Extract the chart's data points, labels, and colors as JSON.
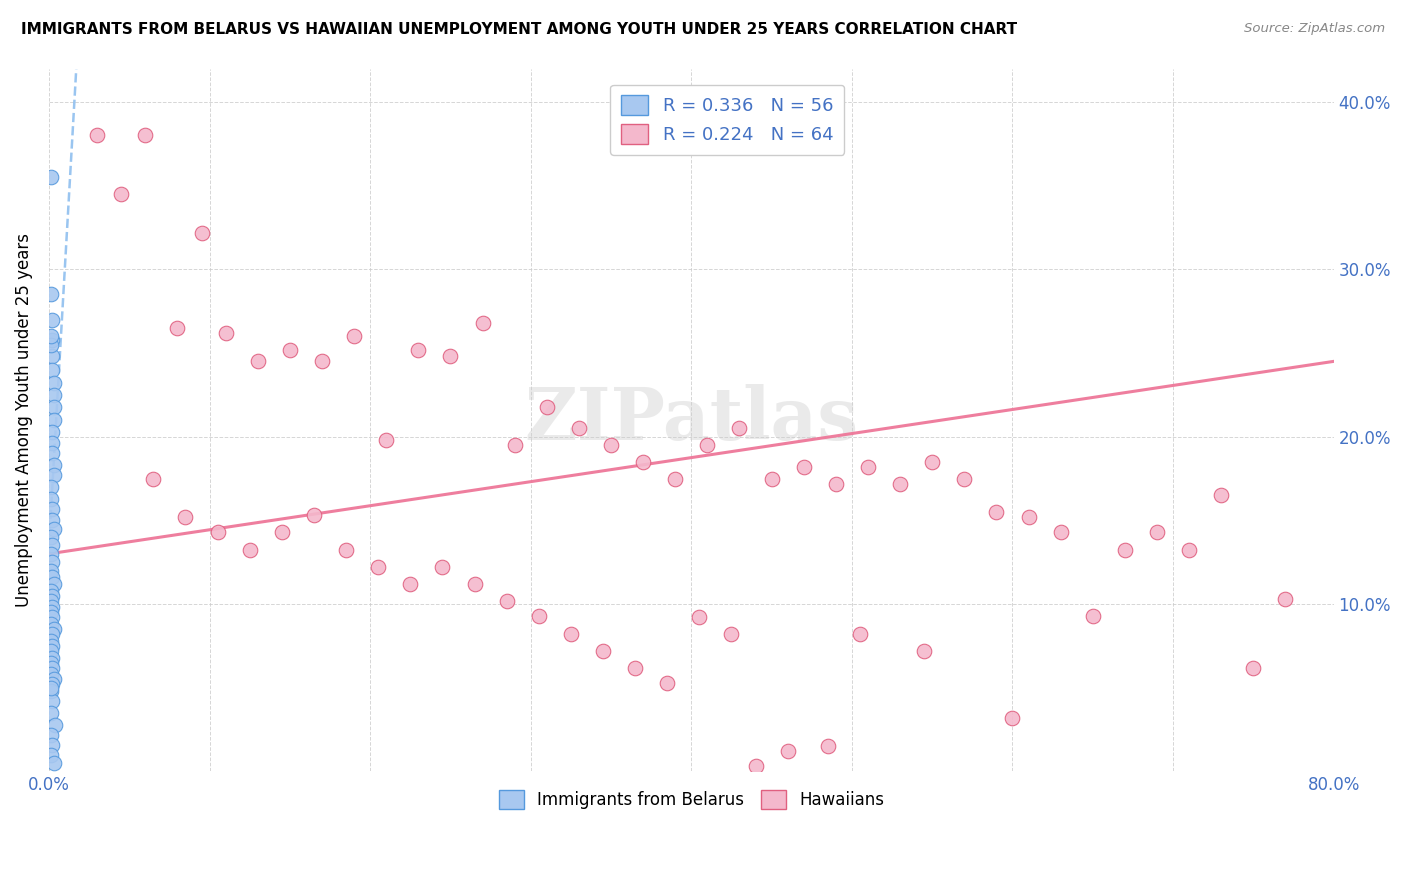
{
  "title": "IMMIGRANTS FROM BELARUS VS HAWAIIAN UNEMPLOYMENT AMONG YOUTH UNDER 25 YEARS CORRELATION CHART",
  "source": "Source: ZipAtlas.com",
  "ylabel": "Unemployment Among Youth under 25 years",
  "xlim": [
    0.0,
    0.8
  ],
  "ylim": [
    0.0,
    0.42
  ],
  "blue_R": 0.336,
  "blue_N": 56,
  "pink_R": 0.224,
  "pink_N": 64,
  "blue_color": "#a8c8f0",
  "pink_color": "#f4b8cc",
  "blue_edge_color": "#5599dd",
  "pink_edge_color": "#e06080",
  "blue_line_color": "#88bbee",
  "pink_line_color": "#ee7799",
  "legend_text_color": "#4472c4",
  "blue_scatter_x": [
    0.001,
    0.001,
    0.002,
    0.002,
    0.002,
    0.002,
    0.003,
    0.003,
    0.003,
    0.003,
    0.001,
    0.001,
    0.002,
    0.002,
    0.002,
    0.003,
    0.003,
    0.001,
    0.001,
    0.002,
    0.002,
    0.003,
    0.001,
    0.002,
    0.001,
    0.002,
    0.001,
    0.002,
    0.003,
    0.001,
    0.002,
    0.001,
    0.002,
    0.001,
    0.002,
    0.001,
    0.003,
    0.002,
    0.001,
    0.002,
    0.001,
    0.002,
    0.001,
    0.002,
    0.001,
    0.003,
    0.002,
    0.001,
    0.002,
    0.001,
    0.004,
    0.001,
    0.002,
    0.001,
    0.003,
    0.001
  ],
  "blue_scatter_y": [
    0.355,
    0.285,
    0.27,
    0.258,
    0.248,
    0.24,
    0.232,
    0.225,
    0.218,
    0.21,
    0.255,
    0.26,
    0.203,
    0.196,
    0.19,
    0.183,
    0.177,
    0.17,
    0.163,
    0.157,
    0.15,
    0.145,
    0.14,
    0.135,
    0.13,
    0.125,
    0.12,
    0.116,
    0.112,
    0.108,
    0.105,
    0.102,
    0.098,
    0.095,
    0.092,
    0.088,
    0.085,
    0.082,
    0.078,
    0.075,
    0.072,
    0.068,
    0.065,
    0.062,
    0.058,
    0.055,
    0.052,
    0.048,
    0.042,
    0.035,
    0.028,
    0.022,
    0.016,
    0.01,
    0.005,
    0.05
  ],
  "pink_scatter_x": [
    0.03,
    0.06,
    0.045,
    0.08,
    0.095,
    0.11,
    0.13,
    0.15,
    0.17,
    0.19,
    0.21,
    0.23,
    0.25,
    0.27,
    0.29,
    0.31,
    0.33,
    0.35,
    0.37,
    0.39,
    0.41,
    0.43,
    0.45,
    0.47,
    0.49,
    0.51,
    0.53,
    0.55,
    0.57,
    0.59,
    0.61,
    0.63,
    0.65,
    0.67,
    0.69,
    0.71,
    0.73,
    0.75,
    0.77,
    0.065,
    0.085,
    0.105,
    0.125,
    0.145,
    0.165,
    0.185,
    0.205,
    0.225,
    0.245,
    0.265,
    0.285,
    0.305,
    0.325,
    0.345,
    0.365,
    0.385,
    0.405,
    0.425,
    0.485,
    0.505,
    0.545,
    0.6,
    0.44,
    0.46
  ],
  "pink_scatter_y": [
    0.38,
    0.38,
    0.345,
    0.265,
    0.322,
    0.262,
    0.245,
    0.252,
    0.245,
    0.26,
    0.198,
    0.252,
    0.248,
    0.268,
    0.195,
    0.218,
    0.205,
    0.195,
    0.185,
    0.175,
    0.195,
    0.205,
    0.175,
    0.182,
    0.172,
    0.182,
    0.172,
    0.185,
    0.175,
    0.155,
    0.152,
    0.143,
    0.093,
    0.132,
    0.143,
    0.132,
    0.165,
    0.062,
    0.103,
    0.175,
    0.152,
    0.143,
    0.132,
    0.143,
    0.153,
    0.132,
    0.122,
    0.112,
    0.122,
    0.112,
    0.102,
    0.093,
    0.082,
    0.072,
    0.062,
    0.053,
    0.092,
    0.082,
    0.015,
    0.082,
    0.072,
    0.032,
    0.003,
    0.012
  ],
  "blue_line_x": [
    0.0,
    0.017
  ],
  "blue_line_y_start": 0.135,
  "blue_line_y_end": 0.42,
  "pink_line_x": [
    0.0,
    0.8
  ],
  "pink_line_y_start": 0.13,
  "pink_line_y_end": 0.245
}
